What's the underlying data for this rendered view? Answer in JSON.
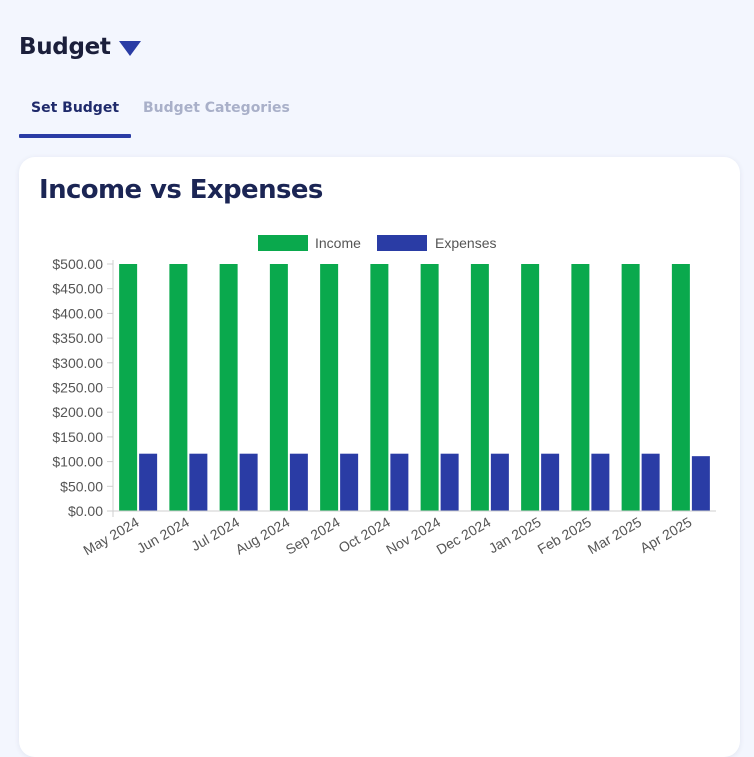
{
  "header": {
    "title": "Budget"
  },
  "tabs": [
    {
      "label": "Set Budget",
      "active": true
    },
    {
      "label": "Budget Categories",
      "active": false
    }
  ],
  "card": {
    "title": "Income vs Expenses"
  },
  "colors": {
    "income": "#0aa94d",
    "expenses": "#2a3ca5",
    "accent": "#2a3ca5"
  },
  "chart_data": {
    "type": "bar",
    "title": "",
    "xlabel": "",
    "ylabel": "",
    "ylim": [
      0,
      500
    ],
    "yticks": [
      "$0.00",
      "$50.00",
      "$100.00",
      "$150.00",
      "$200.00",
      "$250.00",
      "$300.00",
      "$350.00",
      "$400.00",
      "$450.00",
      "$500.00"
    ],
    "legend_position": "top",
    "categories": [
      "May 2024",
      "Jun 2024",
      "Jul 2024",
      "Aug 2024",
      "Sep 2024",
      "Oct 2024",
      "Nov 2024",
      "Dec 2024",
      "Jan 2025",
      "Feb 2025",
      "Mar 2025",
      "Apr 2025"
    ],
    "series": [
      {
        "name": "Income",
        "values": [
          500,
          500,
          500,
          500,
          500,
          500,
          500,
          500,
          500,
          500,
          500,
          500
        ]
      },
      {
        "name": "Expenses",
        "values": [
          116,
          116,
          116,
          116,
          116,
          116,
          116,
          116,
          116,
          116,
          116,
          111
        ]
      }
    ]
  }
}
